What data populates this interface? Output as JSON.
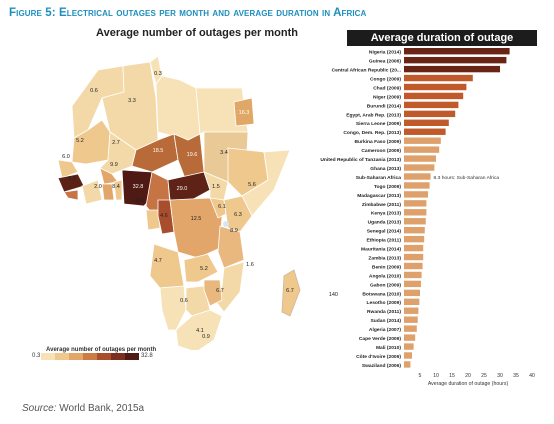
{
  "figure_title": "Figure 5: Electrical outages per month and average duration in Africa",
  "source_prefix": "Source:",
  "source_text": " World Bank, 2015a",
  "map": {
    "title": "Average number of outages per month",
    "legend_title": "Average number of outages per month",
    "legend_min": "0.3",
    "legend_max": "32.8",
    "scale_colors": [
      "#f6e2b6",
      "#efc88e",
      "#e3a66a",
      "#cc7b45",
      "#a94e2c",
      "#7c2f1e",
      "#4e1a13"
    ],
    "regions": [
      {
        "label": "0.3",
        "value": 0.3
      },
      {
        "label": "0.6",
        "value": 0.6
      },
      {
        "label": "3.3",
        "value": 3.3
      },
      {
        "label": "5.2",
        "value": 5.2
      },
      {
        "label": "2.7",
        "value": 2.7
      },
      {
        "label": "16.3",
        "value": 16.3
      },
      {
        "label": "6.0",
        "value": 6.0
      },
      {
        "label": "18.5",
        "value": 18.5
      },
      {
        "label": "19.6",
        "value": 19.6
      },
      {
        "label": "3.4",
        "value": 3.4
      },
      {
        "label": "9.9",
        "value": 9.9
      },
      {
        "label": "8.5",
        "value": 8.5
      },
      {
        "label": "2.0",
        "value": 2.0
      },
      {
        "label": "8.4",
        "value": 8.4
      },
      {
        "label": "32.8",
        "value": 32.8
      },
      {
        "label": "29.0",
        "value": 29.0
      },
      {
        "label": "1.5",
        "value": 1.5
      },
      {
        "label": "5.6",
        "value": 5.6
      },
      {
        "label": "9.8",
        "value": 9.8
      },
      {
        "label": "4.6",
        "value": 4.6
      },
      {
        "label": "12.5",
        "value": 12.5
      },
      {
        "label": "6.1",
        "value": 6.1
      },
      {
        "label": "6.3",
        "value": 6.3
      },
      {
        "label": "8.9",
        "value": 8.9
      },
      {
        "label": "4.7",
        "value": 4.7
      },
      {
        "label": "5.2",
        "value": 5.2
      },
      {
        "label": "1.6",
        "value": 1.6
      },
      {
        "label": "6.7",
        "value": 6.7
      },
      {
        "label": "0.6",
        "value": 0.6
      },
      {
        "label": "4.1",
        "value": 4.1
      },
      {
        "label": "0.9",
        "value": 0.9
      },
      {
        "label": "6.7",
        "value": 6.7
      }
    ],
    "stray_label": "140"
  },
  "chart_data": {
    "type": "bar",
    "orientation": "horizontal",
    "title": "Average duration of outage",
    "xlabel": "Average duration of outage (hours)",
    "xlim": [
      0,
      40
    ],
    "xticks": [
      5,
      10,
      15,
      20,
      25,
      30,
      35,
      40
    ],
    "categories": [
      "Nigeria (2014)",
      "Guinea (2006)",
      "Central African Republic (20...",
      "Congo (2009)",
      "Chad (2009)",
      "Niger (2009)",
      "Burundi (2014)",
      "Egypt, Arab Rep. (2013)",
      "Sierra Leone (2009)",
      "Congo, Dem. Rep. (2013)",
      "Burkina Faso (2009)",
      "Cameroon (2009)",
      "United Republic of Tanzania (2013)",
      "Ghana (2013)",
      "Sub-Saharan Africa",
      "Togo (2009)",
      "Madagascar (2013)",
      "Zimbabwe (2011)",
      "Kenya (2013)",
      "Uganda (2013)",
      "Senegal (2014)",
      "Ethiopia (2011)",
      "Mauritania (2014)",
      "Zambia (2013)",
      "Benin (2009)",
      "Angola (2010)",
      "Gabon (2009)",
      "Botswana (2010)",
      "Lesotho (2009)",
      "Rwanda (2011)",
      "Sudan (2014)",
      "Algeria (2007)",
      "Cape Verde (2009)",
      "Mali (2010)",
      "Côte d'Ivoire (2009)",
      "Swaziland (2006)"
    ],
    "values": [
      33,
      32,
      30,
      21.5,
      19.5,
      18.5,
      17,
      16,
      14,
      13,
      11.5,
      11,
      10,
      9.5,
      8.3,
      8,
      7.5,
      7,
      7,
      6.8,
      6.5,
      6.3,
      6,
      6,
      5.8,
      5.5,
      5.3,
      5,
      4.8,
      4.5,
      4.3,
      4,
      3.5,
      3,
      2.5,
      2
    ],
    "annotation": "8.3 hours: Sub-Saharan Africa",
    "colors": {
      "dark": "#6a2416",
      "mid": "#c05a2a",
      "light": "#dfa16c"
    }
  }
}
